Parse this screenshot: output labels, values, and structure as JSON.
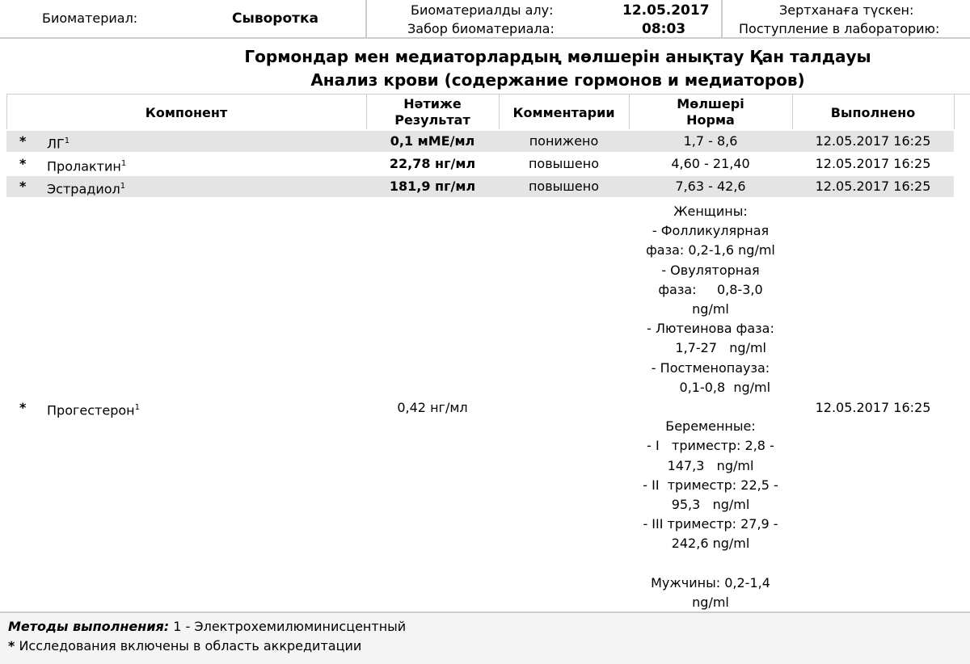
{
  "header": {
    "biomaterial_label": "Биоматериал:",
    "biomaterial_value": "Сыворотка",
    "collection_label_kz": "Биоматериалды алу:",
    "collection_label_ru": "Забор биоматериала:",
    "collection_date": "12.05.2017",
    "collection_time": "08:03",
    "lab_label_kz": "Зертханаға түскен:",
    "lab_label_ru": "Поступление в лабораторию:"
  },
  "title_kz": "Гормондар мен медиаторлардың мөлшерін анықтау Қан  талдауы",
  "title_ru": "Анализ крови (содержание гормонов и медиаторов)",
  "table": {
    "columns": {
      "component": "Компонент",
      "result_kz": "Нәтиже",
      "result_ru": "Результат",
      "comments": "Комментарии",
      "norm_kz": "Мөлшері",
      "norm_ru": "Норма",
      "done": "Выполнено"
    },
    "rows": [
      {
        "mark": "*",
        "name": "ЛГ",
        "sup": "1",
        "result": "0,1 мМЕ/мл",
        "comment": "понижено",
        "norm": "1,7 - 8,6",
        "done": "12.05.2017 16:25"
      },
      {
        "mark": "*",
        "name": "Пролактин",
        "sup": "1",
        "result": "22,78 нг/мл",
        "comment": "повышено",
        "norm": "4,60 - 21,40",
        "done": "12.05.2017 16:25"
      },
      {
        "mark": "*",
        "name": "Эстрадиол",
        "sup": "1",
        "result": "181,9 пг/мл",
        "comment": "повышено",
        "norm": "7,63 - 42,6",
        "done": "12.05.2017 16:25"
      },
      {
        "mark": "*",
        "name": "Прогестерон",
        "sup": "1",
        "result": "0,42 нг/мл",
        "comment": "",
        "norm": "Женщины:\n- Фолликулярная\nфаза: 0,2-1,6 ng/ml\n- Овуляторная\nфаза:     0,8-3,0\nng/ml\n- Лютеинова фаза:\n     1,7-27   ng/ml\n- Постменопауза:\n       0,1-0,8  ng/ml\n\nБеременные:\n- I   триместр: 2,8 -\n147,3   ng/ml\n- II  триместр: 22,5 -\n95,3   ng/ml\n- III триместр: 27,9 -\n242,6 ng/ml\n\nМужчины: 0,2-1,4\nng/ml",
        "done": "12.05.2017 16:25"
      }
    ]
  },
  "footer": {
    "methods_label": "Методы выполнения:",
    "methods_value": " 1 - Электрохемилюминисцентный",
    "accreditation_mark": "*",
    "accreditation_text": " Исследования включены в область аккредитации"
  },
  "colors": {
    "row_stripe": "#e4e4e4",
    "border": "#cccccc",
    "footer_bg": "#f4f4f4"
  }
}
